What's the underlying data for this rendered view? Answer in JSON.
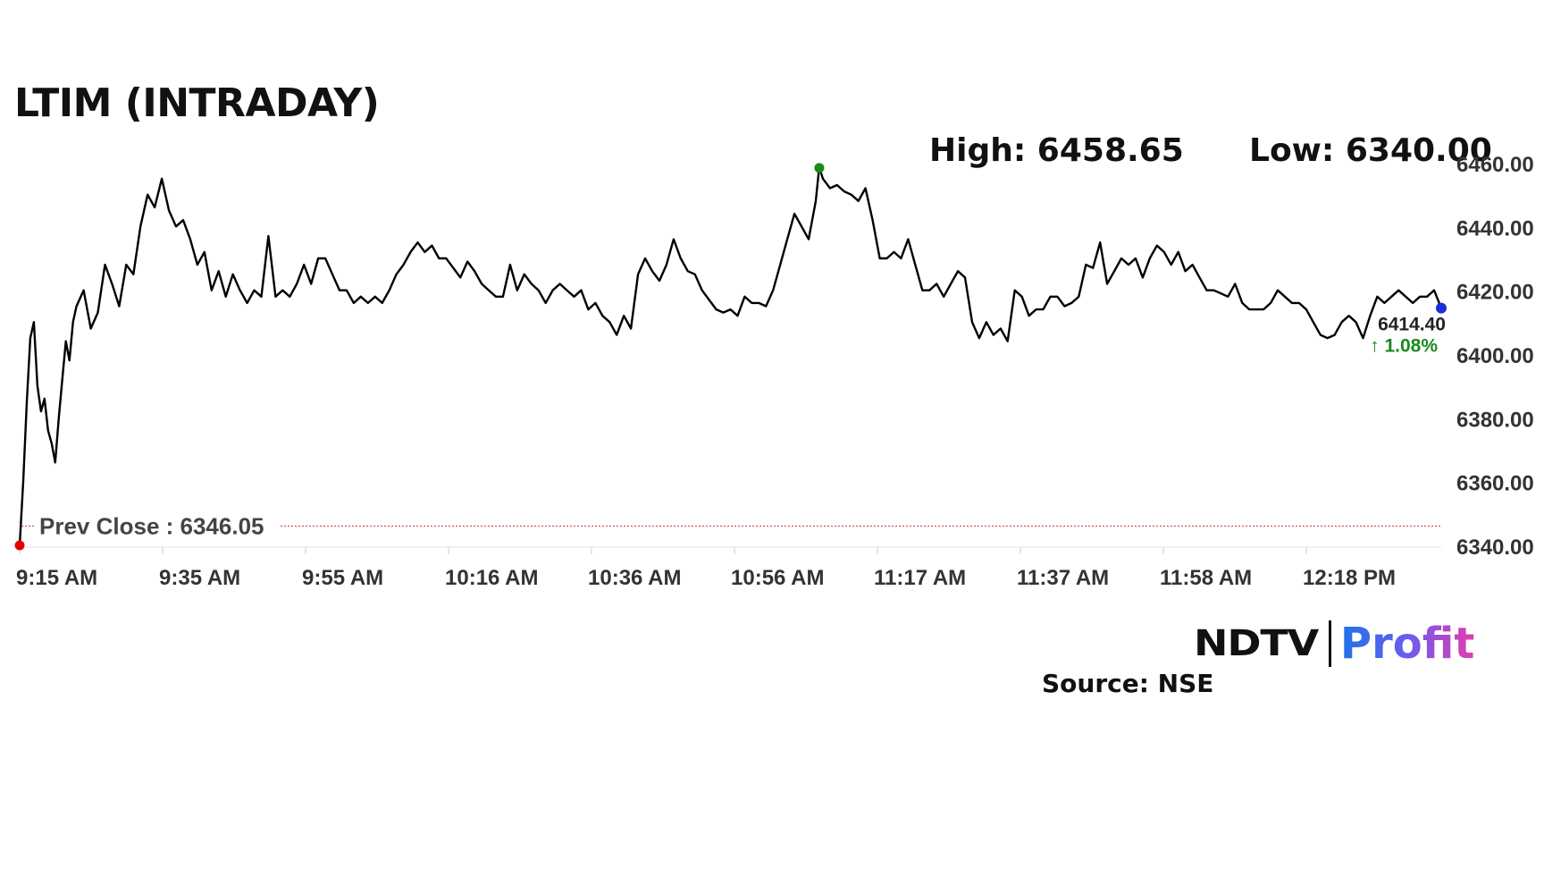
{
  "title": "LTIM (INTRADAY)",
  "high_label": "High: 6458.65",
  "low_label": "Low: 6340.00",
  "source": "Source: NSE",
  "logo": {
    "ndtv": "NDTV",
    "profit": "Profit"
  },
  "colors": {
    "line": "#000000",
    "prev_close": "#d32f2f",
    "low_marker": "#e60000",
    "high_marker": "#1a8a1a",
    "last_marker": "#1a2fd6",
    "change_up": "#1a8a1a"
  },
  "chart_data": {
    "type": "line",
    "title": "LTIM (INTRADAY)",
    "xlabel": "",
    "ylabel": "",
    "ylim": [
      6340,
      6460
    ],
    "y_ticks": [
      "6460.00",
      "6440.00",
      "6420.00",
      "6400.00",
      "6380.00",
      "6360.00",
      "6340.00"
    ],
    "x_ticks": [
      "9:15 AM",
      "9:35 AM",
      "9:55 AM",
      "10:16 AM",
      "10:36 AM",
      "10:56 AM",
      "11:17 AM",
      "11:37 AM",
      "11:58 AM",
      "12:18 PM"
    ],
    "x_minutes_range": [
      0,
      200
    ],
    "prev_close": {
      "label": "Prev Close : 6346.05",
      "value": 6346.05
    },
    "high": {
      "value": 6458.65,
      "minute": 112.5
    },
    "low": {
      "value": 6340.0,
      "minute": 0
    },
    "last": {
      "value": 6414.4,
      "label": "6414.40",
      "change_label": "↑ 1.08%"
    },
    "points": [
      [
        0,
        6340
      ],
      [
        0.5,
        6360
      ],
      [
        1,
        6385
      ],
      [
        1.5,
        6405
      ],
      [
        2,
        6410
      ],
      [
        2.5,
        6390
      ],
      [
        3,
        6382
      ],
      [
        3.5,
        6386
      ],
      [
        4,
        6376
      ],
      [
        4.5,
        6372
      ],
      [
        5,
        6366
      ],
      [
        5.5,
        6380
      ],
      [
        6,
        6392
      ],
      [
        6.5,
        6404
      ],
      [
        7,
        6398
      ],
      [
        7.5,
        6410
      ],
      [
        8,
        6415
      ],
      [
        9,
        6420
      ],
      [
        10,
        6408
      ],
      [
        11,
        6413
      ],
      [
        12,
        6428
      ],
      [
        13,
        6422
      ],
      [
        14,
        6415
      ],
      [
        15,
        6428
      ],
      [
        16,
        6425
      ],
      [
        17,
        6440
      ],
      [
        18,
        6450
      ],
      [
        19,
        6446
      ],
      [
        20,
        6455
      ],
      [
        21,
        6445
      ],
      [
        22,
        6440
      ],
      [
        23,
        6442
      ],
      [
        24,
        6436
      ],
      [
        25,
        6428
      ],
      [
        26,
        6432
      ],
      [
        27,
        6420
      ],
      [
        28,
        6426
      ],
      [
        29,
        6418
      ],
      [
        30,
        6425
      ],
      [
        31,
        6420
      ],
      [
        32,
        6416
      ],
      [
        33,
        6420
      ],
      [
        34,
        6418
      ],
      [
        35,
        6437
      ],
      [
        36,
        6418
      ],
      [
        37,
        6420
      ],
      [
        38,
        6418
      ],
      [
        39,
        6422
      ],
      [
        40,
        6428
      ],
      [
        41,
        6422
      ],
      [
        42,
        6430
      ],
      [
        43,
        6430
      ],
      [
        44,
        6425
      ],
      [
        45,
        6420
      ],
      [
        46,
        6420
      ],
      [
        47,
        6416
      ],
      [
        48,
        6418
      ],
      [
        49,
        6416
      ],
      [
        50,
        6418
      ],
      [
        51,
        6416
      ],
      [
        52,
        6420
      ],
      [
        53,
        6425
      ],
      [
        54,
        6428
      ],
      [
        55,
        6432
      ],
      [
        56,
        6435
      ],
      [
        57,
        6432
      ],
      [
        58,
        6434
      ],
      [
        59,
        6430
      ],
      [
        60,
        6430
      ],
      [
        61,
        6427
      ],
      [
        62,
        6424
      ],
      [
        63,
        6429
      ],
      [
        64,
        6426
      ],
      [
        65,
        6422
      ],
      [
        66,
        6420
      ],
      [
        67,
        6418
      ],
      [
        68,
        6418
      ],
      [
        69,
        6428
      ],
      [
        70,
        6420
      ],
      [
        71,
        6425
      ],
      [
        72,
        6422
      ],
      [
        73,
        6420
      ],
      [
        74,
        6416
      ],
      [
        75,
        6420
      ],
      [
        76,
        6422
      ],
      [
        77,
        6420
      ],
      [
        78,
        6418
      ],
      [
        79,
        6420
      ],
      [
        80,
        6414
      ],
      [
        81,
        6416
      ],
      [
        82,
        6412
      ],
      [
        83,
        6410
      ],
      [
        84,
        6406
      ],
      [
        85,
        6412
      ],
      [
        86,
        6408
      ],
      [
        87,
        6425
      ],
      [
        88,
        6430
      ],
      [
        89,
        6426
      ],
      [
        90,
        6423
      ],
      [
        91,
        6428
      ],
      [
        92,
        6436
      ],
      [
        93,
        6430
      ],
      [
        94,
        6426
      ],
      [
        95,
        6425
      ],
      [
        96,
        6420
      ],
      [
        97,
        6417
      ],
      [
        98,
        6414
      ],
      [
        99,
        6413
      ],
      [
        100,
        6414
      ],
      [
        101,
        6412
      ],
      [
        102,
        6418
      ],
      [
        103,
        6416
      ],
      [
        104,
        6416
      ],
      [
        105,
        6415
      ],
      [
        106,
        6420
      ],
      [
        107,
        6428
      ],
      [
        108,
        6436
      ],
      [
        109,
        6444
      ],
      [
        110,
        6440
      ],
      [
        111,
        6436
      ],
      [
        112,
        6448
      ],
      [
        112.5,
        6458.65
      ],
      [
        113,
        6455
      ],
      [
        114,
        6452
      ],
      [
        115,
        6453
      ],
      [
        116,
        6451
      ],
      [
        117,
        6450
      ],
      [
        118,
        6448
      ],
      [
        119,
        6452
      ],
      [
        120,
        6442
      ],
      [
        121,
        6430
      ],
      [
        122,
        6430
      ],
      [
        123,
        6432
      ],
      [
        124,
        6430
      ],
      [
        125,
        6436
      ],
      [
        126,
        6428
      ],
      [
        127,
        6420
      ],
      [
        128,
        6420
      ],
      [
        129,
        6422
      ],
      [
        130,
        6418
      ],
      [
        131,
        6422
      ],
      [
        132,
        6426
      ],
      [
        133,
        6424
      ],
      [
        134,
        6410
      ],
      [
        135,
        6405
      ],
      [
        136,
        6410
      ],
      [
        137,
        6406
      ],
      [
        138,
        6408
      ],
      [
        139,
        6404
      ],
      [
        140,
        6420
      ],
      [
        141,
        6418
      ],
      [
        142,
        6412
      ],
      [
        143,
        6414
      ],
      [
        144,
        6414
      ],
      [
        145,
        6418
      ],
      [
        146,
        6418
      ],
      [
        147,
        6415
      ],
      [
        148,
        6416
      ],
      [
        149,
        6418
      ],
      [
        150,
        6428
      ],
      [
        151,
        6427
      ],
      [
        152,
        6435
      ],
      [
        153,
        6422
      ],
      [
        154,
        6426
      ],
      [
        155,
        6430
      ],
      [
        156,
        6428
      ],
      [
        157,
        6430
      ],
      [
        158,
        6424
      ],
      [
        159,
        6430
      ],
      [
        160,
        6434
      ],
      [
        161,
        6432
      ],
      [
        162,
        6428
      ],
      [
        163,
        6432
      ],
      [
        164,
        6426
      ],
      [
        165,
        6428
      ],
      [
        166,
        6424
      ],
      [
        167,
        6420
      ],
      [
        168,
        6420
      ],
      [
        169,
        6419
      ],
      [
        170,
        6418
      ],
      [
        171,
        6422
      ],
      [
        172,
        6416
      ],
      [
        173,
        6414
      ],
      [
        174,
        6414
      ],
      [
        175,
        6414
      ],
      [
        176,
        6416
      ],
      [
        177,
        6420
      ],
      [
        178,
        6418
      ],
      [
        179,
        6416
      ],
      [
        180,
        6416
      ],
      [
        181,
        6414
      ],
      [
        182,
        6410
      ],
      [
        183,
        6406
      ],
      [
        184,
        6405
      ],
      [
        185,
        6406
      ],
      [
        186,
        6410
      ],
      [
        187,
        6412
      ],
      [
        188,
        6410
      ],
      [
        189,
        6405
      ],
      [
        190,
        6412
      ],
      [
        191,
        6418
      ],
      [
        192,
        6416
      ],
      [
        193,
        6418
      ],
      [
        194,
        6420
      ],
      [
        195,
        6418
      ],
      [
        196,
        6416
      ],
      [
        197,
        6418
      ],
      [
        198,
        6418
      ],
      [
        199,
        6420
      ],
      [
        200,
        6414.4
      ]
    ]
  }
}
